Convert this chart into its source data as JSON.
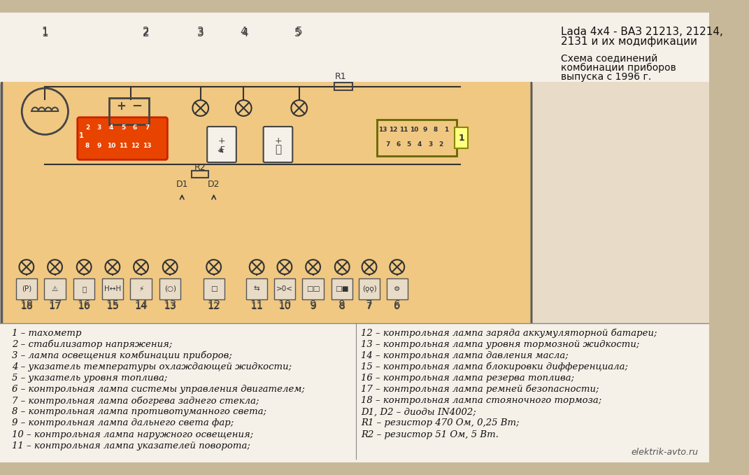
{
  "bg_color": "#f5deb3",
  "outer_bg": "#d4c4a0",
  "title_line1": "Lada 4x4 - ВАЗ 21213, 21214,",
  "title_line2": "2131 и их модификации",
  "title_line3": "",
  "subtitle_line1": "Схема соединений",
  "subtitle_line2": "комбинации приборов",
  "subtitle_line3": "выпуска с 1996 г.",
  "watermark": "elektrik-avto.ru",
  "left_legend": [
    "1 – тахометр",
    "2 – стабилизатор напряжения;",
    "3 – лампа освещения комбинации приборов;",
    "4 – указатель температуры охлаждающей жидкости;",
    "5 – указатель уровня топлива;",
    "6 – контрольная лампа системы управления двигателем;",
    "7 – контрольная лампа обогрева заднего стекла;",
    "8 – контрольная лампа противотуманного света;",
    "9 – контрольная лампа дальнего света фар;",
    "10 – контрольная лампа наружного освещения;",
    "11 – контрольная лампа указателей поворота;"
  ],
  "right_legend": [
    "12 – контрольная лампа заряда аккумуляторной батареи;",
    "13 – контрольная лампа уровня тормозной жидкости;",
    "14 – контрольная лампа давления масла;",
    "15 – контрольная лампа блокировки дифференциала;",
    "16 – контрольная лампа резерва топлива;",
    "17 – контрольная лампа ремней безопасности;",
    "18 – контрольная лампа стояночного тормоза;",
    "D1, D2 – диоды IN4002;",
    "R1 – резистор 470 Ом, 0,25 Вт;",
    "R2 – резистор 51 Ом, 5 Вт."
  ]
}
